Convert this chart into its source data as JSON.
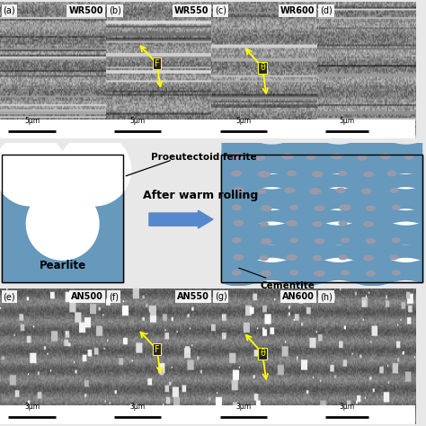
{
  "bg_color": "#e8e8e8",
  "blue_color": "#6699bb",
  "arrow_color": "#5588cc",
  "yellow_color": "#ffff00",
  "oval_color": "#9999aa",
  "scale_top": "5μm",
  "scale_bot": "3μm",
  "pearlite_label": "Pearlite",
  "ferrite_label": "Proeutectoid ferrite",
  "cementite_label": "Cementite",
  "warm_rolling_label": "After warm rolling",
  "top_panels": [
    {
      "label": "WR500",
      "letter": "(a)",
      "has_F": false,
      "has_theta": false
    },
    {
      "label": "WR550",
      "letter": "(b)",
      "has_F": true,
      "has_theta": false
    },
    {
      "label": "WR600",
      "letter": "(c)",
      "has_F": false,
      "has_theta": true
    },
    {
      "label": "",
      "letter": "(d)",
      "has_F": false,
      "has_theta": false
    }
  ],
  "bot_panels": [
    {
      "label": "AN500",
      "letter": "(e)",
      "has_F": false,
      "has_theta": false
    },
    {
      "label": "AN550",
      "letter": "(f)",
      "has_F": true,
      "has_theta": false
    },
    {
      "label": "AN600",
      "letter": "(g)",
      "has_F": false,
      "has_theta": true
    },
    {
      "label": "",
      "letter": "(h)",
      "has_F": false,
      "has_theta": false
    }
  ]
}
